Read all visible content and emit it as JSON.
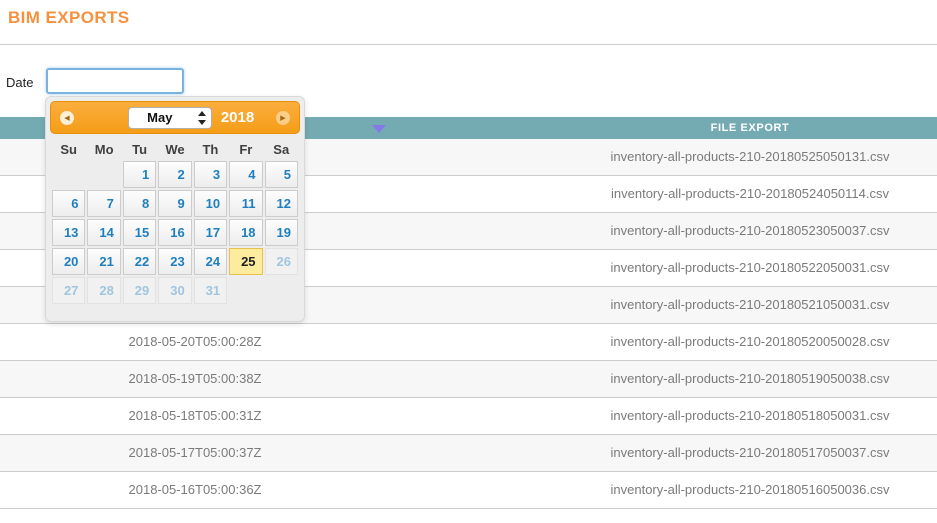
{
  "page": {
    "title": "BIM EXPORTS"
  },
  "filter": {
    "label": "Date",
    "input_value": "",
    "input_placeholder": ""
  },
  "datepicker": {
    "prev_icon": "circle-triangle-left",
    "next_icon": "circle-triangle-right",
    "month": "May",
    "year": "2018",
    "day_headers": [
      "Su",
      "Mo",
      "Tu",
      "We",
      "Th",
      "Fr",
      "Sa"
    ],
    "weeks": [
      [
        "",
        "",
        "1",
        "2",
        "3",
        "4",
        "5"
      ],
      [
        "6",
        "7",
        "8",
        "9",
        "10",
        "11",
        "12"
      ],
      [
        "13",
        "14",
        "15",
        "16",
        "17",
        "18",
        "19"
      ],
      [
        "20",
        "21",
        "22",
        "23",
        "24",
        "25",
        "26"
      ],
      [
        "27",
        "28",
        "29",
        "30",
        "31",
        "",
        ""
      ]
    ],
    "selected_day": "25",
    "disabled_days": [
      "26",
      "27",
      "28",
      "29",
      "30",
      "31"
    ]
  },
  "table": {
    "file_header": "FILE EXPORT",
    "sort_icon": "triangle-down",
    "rows": [
      {
        "date": "",
        "file": "inventory-all-products-210-20180525050131.csv"
      },
      {
        "date": "",
        "file": "inventory-all-products-210-20180524050114.csv"
      },
      {
        "date": "",
        "file": "inventory-all-products-210-20180523050037.csv"
      },
      {
        "date": "",
        "file": "inventory-all-products-210-20180522050031.csv"
      },
      {
        "date": "",
        "file": "inventory-all-products-210-20180521050031.csv"
      },
      {
        "date": "2018-05-20T05:00:28Z",
        "file": "inventory-all-products-210-20180520050028.csv"
      },
      {
        "date": "2018-05-19T05:00:38Z",
        "file": "inventory-all-products-210-20180519050038.csv"
      },
      {
        "date": "2018-05-18T05:00:31Z",
        "file": "inventory-all-products-210-20180518050031.csv"
      },
      {
        "date": "2018-05-17T05:00:37Z",
        "file": "inventory-all-products-210-20180517050037.csv"
      },
      {
        "date": "2018-05-16T05:00:36Z",
        "file": "inventory-all-products-210-20180516050036.csv"
      }
    ]
  },
  "colors": {
    "accent_orange": "#f6913e",
    "calendar_header_orange": "#f6a11f",
    "table_header_teal": "#74aab1",
    "sort_arrow_purple": "#8678e9",
    "day_link_blue": "#1f7fbe",
    "today_yellow": "#fdec9d",
    "row_alt_gray": "#f7f7f7",
    "input_focus_blue": "#7ab3e0"
  }
}
